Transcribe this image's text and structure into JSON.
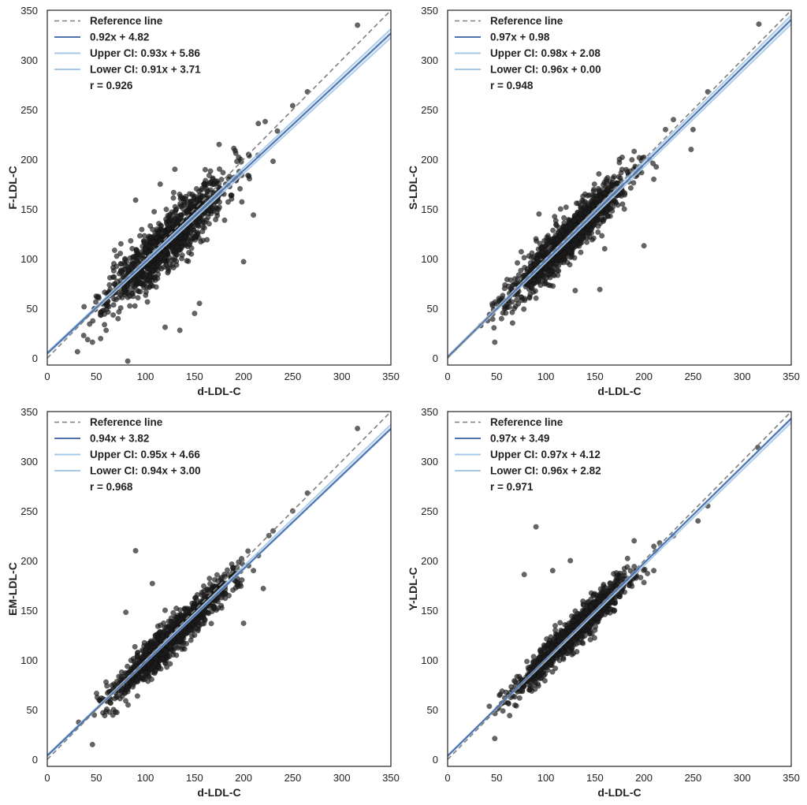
{
  "chart_data": [
    {
      "type": "scatter",
      "xlabel": "d-LDL-C",
      "ylabel": "F-LDL-C",
      "xlim": [
        0,
        350
      ],
      "ylim": [
        -7,
        350
      ],
      "xticks": [
        0,
        50,
        100,
        150,
        200,
        250,
        300,
        350
      ],
      "yticks": [
        0,
        50,
        100,
        150,
        200,
        250,
        300,
        350
      ],
      "grid": false,
      "legend_position": "top-left",
      "legend": [
        "Reference line",
        "0.92x + 4.82",
        "Upper CI: 0.93x + 5.86",
        "Lower CI: 0.91x + 3.71",
        "r = 0.926"
      ],
      "reference_line": {
        "slope": 1,
        "intercept": 0
      },
      "fit": {
        "slope": 0.92,
        "intercept": 4.82
      },
      "upper_ci": {
        "slope": 0.93,
        "intercept": 5.86
      },
      "lower_ci": {
        "slope": 0.91,
        "intercept": 3.71
      },
      "r": 0.926,
      "points": [
        [
          316,
          335
        ],
        [
          82,
          -3
        ],
        [
          46,
          16
        ],
        [
          265,
          268
        ],
        [
          250,
          254
        ],
        [
          200,
          97
        ],
        [
          210,
          144
        ],
        [
          230,
          198
        ],
        [
          222,
          238
        ],
        [
          215,
          236
        ],
        [
          90,
          159
        ],
        [
          85,
          118
        ],
        [
          75,
          115
        ],
        [
          120,
          31
        ],
        [
          135,
          28
        ],
        [
          150,
          45
        ],
        [
          155,
          55
        ],
        [
          60,
          28
        ],
        [
          115,
          175
        ],
        [
          130,
          190
        ],
        [
          175,
          215
        ],
        [
          180,
          165
        ],
        [
          170,
          175
        ],
        [
          190,
          211
        ],
        [
          195,
          202
        ],
        [
          205,
          205
        ],
        [
          100,
          76
        ],
        [
          140,
          156
        ],
        [
          160,
          175
        ]
      ],
      "cloud": {
        "xmin": 30,
        "xmax": 245,
        "mean": 122,
        "sd": 30,
        "noise_sd": 14,
        "n": 1100,
        "seed": 11
      }
    },
    {
      "type": "scatter",
      "xlabel": "d-LDL-C",
      "ylabel": "S-LDL-C",
      "xlim": [
        0,
        350
      ],
      "ylim": [
        -7,
        350
      ],
      "xticks": [
        0,
        50,
        100,
        150,
        200,
        250,
        300,
        350
      ],
      "yticks": [
        0,
        50,
        100,
        150,
        200,
        250,
        300,
        350
      ],
      "grid": false,
      "legend_position": "top-left",
      "legend": [
        "Reference line",
        "0.97x + 0.98",
        "Upper CI: 0.98x + 2.08",
        "Lower CI: 0.96x + 0.00",
        "r = 0.948"
      ],
      "reference_line": {
        "slope": 1,
        "intercept": 0
      },
      "fit": {
        "slope": 0.97,
        "intercept": 0.98
      },
      "upper_ci": {
        "slope": 0.98,
        "intercept": 2.08
      },
      "lower_ci": {
        "slope": 0.96,
        "intercept": 0.0
      },
      "r": 0.948,
      "points": [
        [
          317,
          336
        ],
        [
          48,
          16
        ],
        [
          265,
          268
        ],
        [
          250,
          230
        ],
        [
          248,
          210
        ],
        [
          200,
          113
        ],
        [
          210,
          180
        ],
        [
          222,
          230
        ],
        [
          230,
          240
        ],
        [
          93,
          145
        ],
        [
          130,
          68
        ],
        [
          155,
          69
        ],
        [
          90,
          120
        ],
        [
          75,
          107
        ],
        [
          115,
          150
        ],
        [
          140,
          165
        ],
        [
          175,
          200
        ],
        [
          190,
          208
        ],
        [
          160,
          110
        ],
        [
          180,
          150
        ]
      ],
      "cloud": {
        "xmin": 30,
        "xmax": 245,
        "mean": 122,
        "sd": 30,
        "noise_sd": 11,
        "n": 1100,
        "seed": 23
      }
    },
    {
      "type": "scatter",
      "xlabel": "d-LDL-C",
      "ylabel": "EM-LDL-C",
      "xlim": [
        0,
        350
      ],
      "ylim": [
        -7,
        350
      ],
      "xticks": [
        0,
        50,
        100,
        150,
        200,
        250,
        300,
        350
      ],
      "yticks": [
        0,
        50,
        100,
        150,
        200,
        250,
        300,
        350
      ],
      "grid": false,
      "legend_position": "top-left",
      "legend": [
        "Reference line",
        "0.94x + 3.82",
        "Upper CI: 0.95x + 4.66",
        "Lower CI: 0.94x + 3.00",
        "r = 0.968"
      ],
      "reference_line": {
        "slope": 1,
        "intercept": 0
      },
      "fit": {
        "slope": 0.94,
        "intercept": 3.82
      },
      "upper_ci": {
        "slope": 0.95,
        "intercept": 4.66
      },
      "lower_ci": {
        "slope": 0.94,
        "intercept": 3.0
      },
      "r": 0.968,
      "points": [
        [
          316,
          333
        ],
        [
          46,
          15
        ],
        [
          265,
          268
        ],
        [
          250,
          250
        ],
        [
          90,
          210
        ],
        [
          107,
          177
        ],
        [
          80,
          148
        ],
        [
          200,
          137
        ],
        [
          220,
          172
        ],
        [
          230,
          230
        ],
        [
          210,
          190
        ],
        [
          60,
          60
        ],
        [
          150,
          125
        ],
        [
          120,
          150
        ]
      ],
      "cloud": {
        "xmin": 30,
        "xmax": 240,
        "mean": 125,
        "sd": 30,
        "noise_sd": 9,
        "n": 1100,
        "seed": 37
      }
    },
    {
      "type": "scatter",
      "xlabel": "d-LDL-C",
      "ylabel": "Y-LDL-C",
      "xlim": [
        0,
        350
      ],
      "ylim": [
        -7,
        350
      ],
      "xticks": [
        0,
        50,
        100,
        150,
        200,
        250,
        300,
        350
      ],
      "yticks": [
        0,
        50,
        100,
        150,
        200,
        250,
        300,
        350
      ],
      "grid": false,
      "legend_position": "top-left",
      "legend": [
        "Reference line",
        "0.97x + 3.49",
        "Upper CI: 0.97x + 4.12",
        "Lower CI: 0.96x + 2.82",
        "r = 0.971"
      ],
      "reference_line": {
        "slope": 1,
        "intercept": 0
      },
      "fit": {
        "slope": 0.97,
        "intercept": 3.49
      },
      "upper_ci": {
        "slope": 0.97,
        "intercept": 4.12
      },
      "lower_ci": {
        "slope": 0.96,
        "intercept": 2.82
      },
      "r": 0.971,
      "points": [
        [
          316,
          314
        ],
        [
          90,
          234
        ],
        [
          78,
          186
        ],
        [
          107,
          190
        ],
        [
          125,
          200
        ],
        [
          48,
          21
        ],
        [
          265,
          255
        ],
        [
          255,
          240
        ],
        [
          200,
          178
        ],
        [
          210,
          190
        ],
        [
          190,
          220
        ],
        [
          230,
          225
        ],
        [
          150,
          130
        ],
        [
          170,
          150
        ]
      ],
      "cloud": {
        "xmin": 30,
        "xmax": 250,
        "mean": 128,
        "sd": 30,
        "noise_sd": 8,
        "n": 1100,
        "seed": 53
      }
    }
  ]
}
